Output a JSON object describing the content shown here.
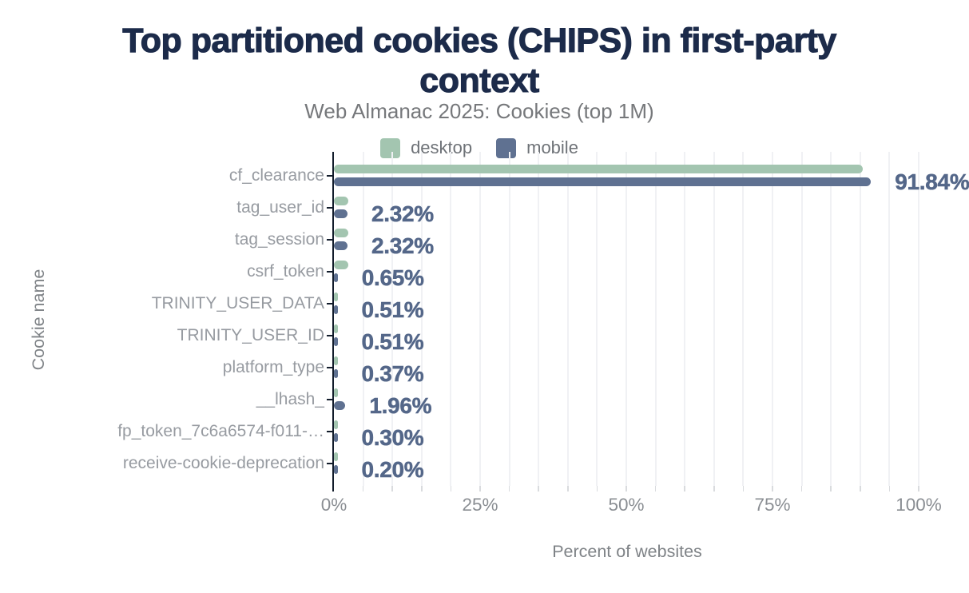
{
  "title": "Top partitioned cookies (CHIPS) in first-party context",
  "subtitle": "Web Almanac 2025: Cookies (top 1M)",
  "legend": [
    {
      "label": "desktop",
      "color": "#a3c5b0"
    },
    {
      "label": "mobile",
      "color": "#5f7191"
    }
  ],
  "colors": {
    "title": "#1c2b4a",
    "desktop_bar": "#a3c5b0",
    "mobile_bar": "#5f7191",
    "value_label": "#546789",
    "axis_line": "#121c2b",
    "gridline": "#f0f1f4",
    "category_label": "#979ba1",
    "tick_label": "#8a8e93"
  },
  "chart_data": {
    "type": "bar",
    "orientation": "horizontal",
    "title": "Top partitioned cookies (CHIPS) in first-party context",
    "subtitle": "Web Almanac 2025: Cookies (top 1M)",
    "xlabel": "Percent of websites",
    "ylabel": "Cookie name",
    "xlim": [
      0,
      100
    ],
    "x_ticks": [
      {
        "value": 0,
        "label": "0%"
      },
      {
        "value": 25,
        "label": "25%"
      },
      {
        "value": 50,
        "label": "50%"
      },
      {
        "value": 75,
        "label": "75%"
      },
      {
        "value": 100,
        "label": "100%"
      }
    ],
    "grid": "vertical, every 5%",
    "legend_position": "top-center",
    "categories": [
      "cf_clearance",
      "tag_user_id",
      "tag_session",
      "csrf_token",
      "TRINITY_USER_DATA",
      "TRINITY_USER_ID",
      "platform_type",
      "__lhash_",
      "fp_token_7c6a6574-f011-…",
      "receive-cookie-deprecation"
    ],
    "series": [
      {
        "name": "desktop",
        "color": "#a3c5b0",
        "values": [
          90.4,
          2.5,
          2.5,
          2.5,
          0.5,
          0.5,
          0.4,
          0.3,
          0.3,
          0.15
        ]
      },
      {
        "name": "mobile",
        "color": "#5f7191",
        "values": [
          91.84,
          2.32,
          2.32,
          0.65,
          0.51,
          0.51,
          0.37,
          1.96,
          0.3,
          0.2
        ]
      }
    ],
    "value_labels": [
      "91.84%",
      "2.32%",
      "2.32%",
      "0.65%",
      "0.51%",
      "0.51%",
      "0.37%",
      "1.96%",
      "0.30%",
      "0.20%"
    ],
    "value_labels_series": "mobile"
  }
}
